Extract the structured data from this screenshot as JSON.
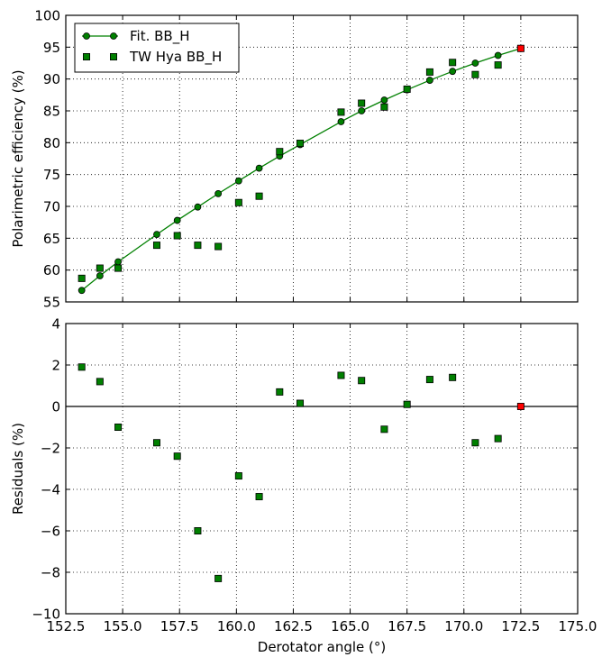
{
  "chart_data": [
    {
      "type": "line",
      "panel": "top",
      "xlabel": "",
      "ylabel": "Polarimetric efficiency (%)",
      "xlim": [
        152.5,
        175.0
      ],
      "ylim": [
        55,
        100
      ],
      "grid": true,
      "grid_style": "dotted",
      "legend_position": "upper-left",
      "x_ticks": [],
      "y_ticks": [
        "55",
        "60",
        "65",
        "70",
        "75",
        "80",
        "85",
        "90",
        "95",
        "100"
      ],
      "series": [
        {
          "name": "Fit. BB_H",
          "style": "line-with-circles",
          "color": "#008000",
          "x": [
            153.2,
            154.0,
            154.8,
            156.5,
            157.4,
            158.3,
            159.2,
            160.1,
            161.0,
            161.9,
            162.8,
            164.6,
            165.5,
            166.5,
            167.5,
            168.5,
            169.5,
            170.5,
            171.5,
            172.5
          ],
          "y": [
            56.8,
            59.1,
            61.3,
            65.6,
            67.8,
            69.9,
            72.0,
            74.0,
            76.0,
            77.9,
            79.7,
            83.3,
            85.0,
            86.7,
            88.3,
            89.8,
            91.2,
            92.5,
            93.7,
            94.8
          ]
        },
        {
          "name": "TW Hya BB_H",
          "style": "squares",
          "color": "#008000",
          "highlight_color": "#ff0000",
          "highlight_index": 19,
          "x": [
            153.2,
            154.0,
            154.8,
            156.5,
            157.4,
            158.3,
            159.2,
            160.1,
            161.0,
            161.9,
            162.8,
            164.6,
            165.5,
            166.5,
            167.5,
            168.5,
            169.5,
            170.5,
            171.5,
            172.5
          ],
          "y": [
            58.7,
            60.3,
            60.3,
            63.9,
            65.4,
            63.9,
            63.7,
            70.6,
            71.6,
            78.6,
            79.9,
            84.8,
            86.2,
            85.6,
            88.4,
            91.1,
            92.6,
            90.7,
            92.2,
            94.8
          ]
        }
      ]
    },
    {
      "type": "scatter",
      "panel": "bottom",
      "xlabel": "Derotator angle (°)",
      "ylabel": "Residuals (%)",
      "xlim": [
        152.5,
        175.0
      ],
      "ylim": [
        -10,
        4
      ],
      "grid": true,
      "grid_style": "dotted",
      "zero_line": true,
      "x_ticks": [
        "152.5",
        "155.0",
        "157.5",
        "160.0",
        "162.5",
        "165.0",
        "167.5",
        "170.0",
        "172.5",
        "175.0"
      ],
      "y_ticks": [
        "−10",
        "−8",
        "−6",
        "−4",
        "−2",
        "0",
        "2",
        "4"
      ],
      "series": [
        {
          "style": "squares",
          "color": "#008000",
          "highlight_color": "#ff0000",
          "highlight_index": 19,
          "x": [
            153.2,
            154.0,
            154.8,
            156.5,
            157.4,
            158.3,
            159.2,
            160.1,
            161.0,
            161.9,
            162.8,
            164.6,
            165.5,
            166.5,
            167.5,
            168.5,
            169.5,
            170.5,
            171.5,
            172.5
          ],
          "y": [
            1.9,
            1.2,
            -1.0,
            -1.75,
            -2.4,
            -6.0,
            -8.3,
            -3.35,
            -4.35,
            0.7,
            0.15,
            1.5,
            1.25,
            -1.1,
            0.1,
            1.3,
            1.4,
            -1.75,
            -1.55,
            0.0
          ]
        }
      ]
    }
  ]
}
